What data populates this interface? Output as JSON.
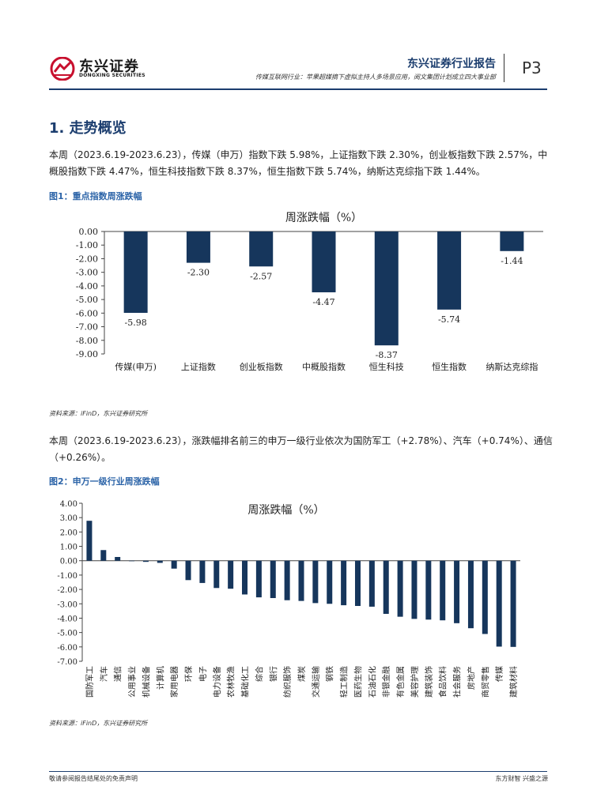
{
  "header": {
    "logo_cn": "东兴证券",
    "logo_en": "DONGXING SECURITIES",
    "report_type": "东兴证券行业报告",
    "subtitle": "传媒互联网行业：苹果超媒摘下虚拟主持人多场景应用，阅文集团计划成立四大事业部",
    "page": "P3"
  },
  "section_title": "1. 走势概览",
  "para1": "本周（2023.6.19-2023.6.23），传媒（申万）指数下跌 5.98%，上证指数下跌 2.30%，创业板指数下跌 2.57%，中概股指数下跌 4.47%，恒生科技指数下跌 8.37%，恒生指数下跌 5.74%，纳斯达克综指下跌 1.44%。",
  "fig1_caption": "图1：重点指数周涨跌幅",
  "fig1_source": "资料来源：iFinD，东兴证券研究所",
  "para2": "本周（2023.6.19-2023.6.23），涨跌幅排名前三的申万一级行业依次为国防军工（+2.78%）、汽车（+0.74%）、通信（+0.26%）。",
  "fig2_caption": "图2：申万一级行业周涨跌幅",
  "fig2_source": "资料来源：iFinD，东兴证券研究所",
  "footer": {
    "left": "敬请参阅报告结尾处的免责声明",
    "right": "东方财智 兴盛之源"
  },
  "colors": {
    "bar": "#16365c",
    "accent": "#1b3d6e",
    "caption": "#2c64a8",
    "logo_red": "#c8102e"
  },
  "chart_data": [
    {
      "type": "bar",
      "title": "周涨跌幅（%）",
      "categories": [
        "传媒(申万)",
        "上证指数",
        "创业板指数",
        "中概股指数",
        "恒生科技",
        "恒生指数",
        "纳斯达克综指"
      ],
      "values": [
        -5.98,
        -2.3,
        -2.57,
        -4.47,
        -8.37,
        -5.74,
        -1.44
      ],
      "value_labels": [
        "-5.98",
        "-2.30",
        "-2.57",
        "-4.47",
        "-8.37",
        "-5.74",
        "-1.44"
      ],
      "yticks": [
        "0.00",
        "-1.00",
        "-2.00",
        "-3.00",
        "-4.00",
        "-5.00",
        "-6.00",
        "-7.00",
        "-8.00",
        "-9.00"
      ],
      "ylim": [
        -9,
        0
      ],
      "grid": false,
      "legend": "none"
    },
    {
      "type": "bar",
      "title": "周涨跌幅（%）",
      "categories": [
        "国防军工",
        "汽车",
        "通信",
        "公用事业",
        "机械设备",
        "计算机",
        "家用电器",
        "环保",
        "电子",
        "电力设备",
        "农林牧渔",
        "基础化工",
        "综合",
        "银行",
        "纺织服饰",
        "煤炭",
        "交通运输",
        "钢铁",
        "轻工制造",
        "医药生物",
        "石油石化",
        "非银金融",
        "有色金属",
        "美容护理",
        "建筑装饰",
        "食品饮料",
        "社会服务",
        "房地产",
        "商贸零售",
        "传媒",
        "建筑材料"
      ],
      "values": [
        2.78,
        0.74,
        0.26,
        -0.02,
        -0.08,
        -0.15,
        -0.55,
        -1.35,
        -1.55,
        -1.9,
        -1.95,
        -2.35,
        -2.55,
        -2.6,
        -2.75,
        -2.8,
        -2.95,
        -3.0,
        -3.1,
        -3.15,
        -3.2,
        -3.7,
        -3.9,
        -4.05,
        -4.1,
        -4.15,
        -4.35,
        -4.7,
        -5.1,
        -5.98,
        -6.0
      ],
      "yticks": [
        "4.00",
        "3.00",
        "2.00",
        "1.00",
        "0.00",
        "-1.00",
        "-2.00",
        "-3.00",
        "-4.00",
        "-5.00",
        "-6.00",
        "-7.00"
      ],
      "ylim": [
        -7,
        4
      ],
      "grid": false,
      "legend": "none"
    }
  ]
}
